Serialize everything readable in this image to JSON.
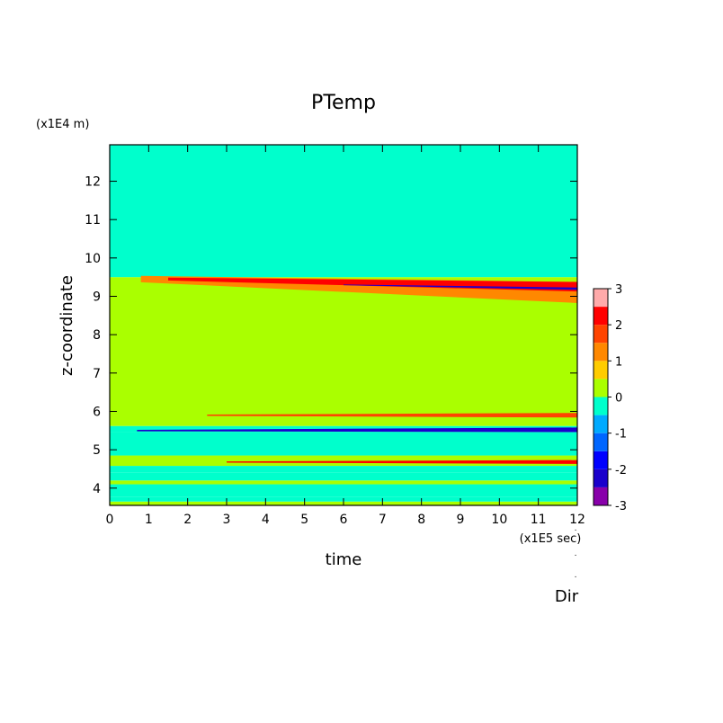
{
  "chart_data": {
    "type": "heatmap",
    "title": "PTemp",
    "xlabel": "time",
    "ylabel": "z-coordinate",
    "x_scale_label": "(x1E5 sec)",
    "y_scale_label": "(x1E4 m)",
    "xlim": [
      0,
      12
    ],
    "ylim": [
      3.55,
      12.95
    ],
    "x_ticks": [
      "0",
      "1",
      "2",
      "3",
      "4",
      "5",
      "6",
      "7",
      "8",
      "9",
      "10",
      "11",
      "12"
    ],
    "y_ticks": [
      "4",
      "5",
      "6",
      "7",
      "8",
      "9",
      "10",
      "11",
      "12"
    ],
    "colorbar": {
      "levels": [
        -3,
        -2.5,
        -2,
        -1.5,
        -1,
        -0.5,
        0,
        0.5,
        1,
        1.5,
        2,
        2.5,
        3
      ],
      "tick_labels": [
        "3",
        "2",
        "1",
        "0",
        "-1",
        "-2",
        "-3"
      ],
      "colors": [
        "#8800aa",
        "#1a00cc",
        "#0000ff",
        "#0066ff",
        "#00aaff",
        "#00ffcc",
        "#aaff00",
        "#ffcc00",
        "#ff8800",
        "#ff4400",
        "#ff0000",
        "#ffaaaa"
      ]
    },
    "bands": [
      {
        "y0": 3.55,
        "y1": 3.65,
        "value": 0.2
      },
      {
        "y0": 3.65,
        "y1": 3.78,
        "value": -0.2
      },
      {
        "y0": 3.78,
        "y1": 4.1,
        "value": -0.2
      },
      {
        "y0": 4.1,
        "y1": 4.2,
        "value": 0.2
      },
      {
        "y0": 4.2,
        "y1": 4.4,
        "value": -0.2
      },
      {
        "y0": 4.4,
        "y1": 4.58,
        "value": -0.2
      },
      {
        "y0": 4.58,
        "y1": 4.85,
        "value": 0.2
      },
      {
        "y0": 4.85,
        "y1": 5.45,
        "value": -0.2
      },
      {
        "y0": 5.45,
        "y1": 5.62,
        "value": -0.2
      },
      {
        "y0": 5.62,
        "y1": 9.5,
        "value": 0.2
      },
      {
        "y0": 9.5,
        "y1": 12.95,
        "value": -0.2
      }
    ],
    "features": [
      {
        "name": "upper warm band",
        "x0": 0.8,
        "x1": 12,
        "y_start": 9.45,
        "y_end": 9.1,
        "thickness": 0.55,
        "value": 1.2
      },
      {
        "name": "upper hot core",
        "x0": 1.5,
        "x1": 12,
        "y_start": 9.45,
        "y_end": 9.25,
        "thickness": 0.25,
        "value": 2.2
      },
      {
        "name": "upper cold streak",
        "x0": 6,
        "x1": 12,
        "y_start": 9.3,
        "y_end": 9.2,
        "thickness": 0.06,
        "value": -2.5
      },
      {
        "name": "mid cold wedge",
        "x0": 0.7,
        "x1": 12,
        "y_start": 5.5,
        "y_end": 5.52,
        "thickness": 0.12,
        "value": -2.2
      },
      {
        "name": "mid warm streak",
        "x0": 2.5,
        "x1": 12,
        "y_start": 5.9,
        "y_end": 5.9,
        "thickness": 0.12,
        "value": 1.8
      },
      {
        "name": "lower warm streak",
        "x0": 3,
        "x1": 12,
        "y_start": 4.68,
        "y_end": 4.68,
        "thickness": 0.1,
        "value": 2.0
      }
    ]
  },
  "footer_label": "Dir"
}
